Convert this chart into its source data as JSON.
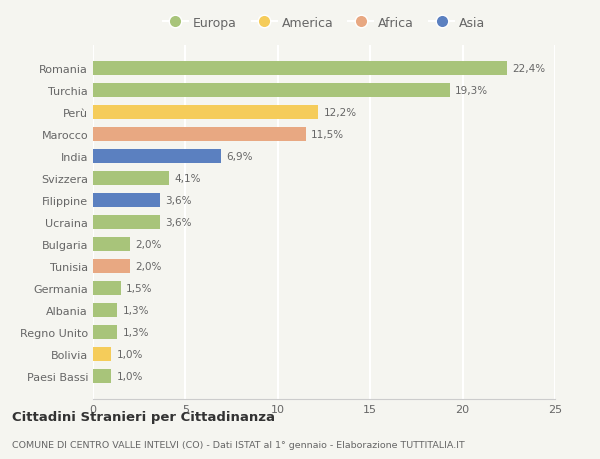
{
  "countries": [
    "Romania",
    "Turchia",
    "Perù",
    "Marocco",
    "India",
    "Svizzera",
    "Filippine",
    "Ucraina",
    "Bulgaria",
    "Tunisia",
    "Germania",
    "Albania",
    "Regno Unito",
    "Bolivia",
    "Paesi Bassi"
  ],
  "values": [
    22.4,
    19.3,
    12.2,
    11.5,
    6.9,
    4.1,
    3.6,
    3.6,
    2.0,
    2.0,
    1.5,
    1.3,
    1.3,
    1.0,
    1.0
  ],
  "labels": [
    "22,4%",
    "19,3%",
    "12,2%",
    "11,5%",
    "6,9%",
    "4,1%",
    "3,6%",
    "3,6%",
    "2,0%",
    "2,0%",
    "1,5%",
    "1,3%",
    "1,3%",
    "1,0%",
    "1,0%"
  ],
  "continents": [
    "Europa",
    "Europa",
    "America",
    "Africa",
    "Asia",
    "Europa",
    "Asia",
    "Europa",
    "Europa",
    "Africa",
    "Europa",
    "Europa",
    "Europa",
    "America",
    "Europa"
  ],
  "colors": {
    "Europa": "#a8c47a",
    "America": "#f5cc5a",
    "Africa": "#e8a882",
    "Asia": "#5b80c0"
  },
  "xlim": [
    0,
    25
  ],
  "xticks": [
    0,
    5,
    10,
    15,
    20,
    25
  ],
  "title": "Cittadini Stranieri per Cittadinanza",
  "subtitle": "COMUNE DI CENTRO VALLE INTELVI (CO) - Dati ISTAT al 1° gennaio - Elaborazione TUTTITALIA.IT",
  "background_color": "#f5f5f0",
  "grid_color": "#ffffff",
  "bar_height": 0.65
}
